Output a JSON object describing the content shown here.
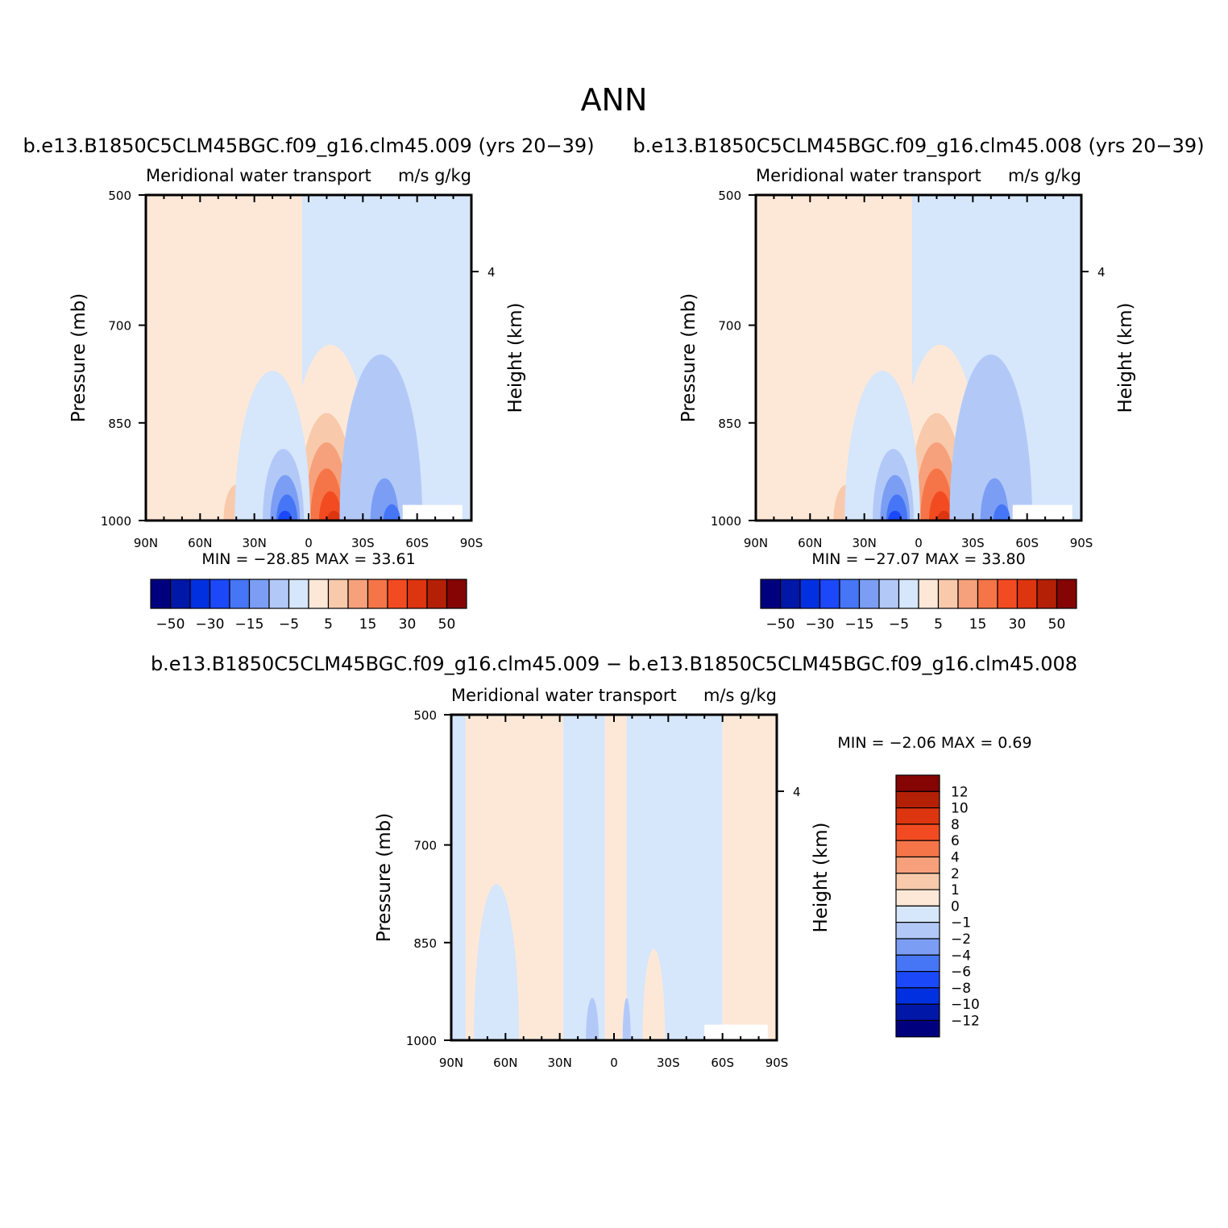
{
  "figure_title": "ANN",
  "colors": {
    "n12": "#00007f",
    "n10": "#0017a8",
    "n8": "#0030df",
    "n6": "#1b48f8",
    "n4": "#4676f6",
    "n2": "#7b9ef4",
    "n1": "#b2c9f8",
    "n0": "#d6e6fb",
    "p0": "#fde8d8",
    "p1": "#f9c9ac",
    "p2": "#f6a17c",
    "p4": "#f57548",
    "p6": "#f34b21",
    "p8": "#dc3510",
    "p10": "#b32006",
    "p12": "#850404"
  },
  "chart_data": [
    {
      "type": "contour",
      "case_title": "b.e13.B1850C5CLM45BGC.f09_g16.clm45.009 (yrs 20−39)",
      "left_title": "Meridional water transport",
      "right_title": "m/s g/kg",
      "ylabel": "Pressure (mb)",
      "ylabel_right": "Height (km)",
      "x_ticks": [
        "90N",
        "60N",
        "30N",
        "0",
        "30S",
        "60S",
        "90S"
      ],
      "x_range": [
        90,
        -90
      ],
      "y_ticks": [
        "500",
        "700",
        "850",
        "1000"
      ],
      "y_range": [
        500,
        1000
      ],
      "right_ticks": [
        "4"
      ],
      "stats": "MIN = −28.85   MAX =  33.61",
      "colorbar_labels": [
        "−50",
        "−30",
        "−15",
        "−5",
        "5",
        "15",
        "30",
        "50"
      ],
      "features": [
        {
          "lat": 38,
          "p_top": 755,
          "level": 1
        },
        {
          "lat": 40,
          "p_top": 945,
          "level": 2
        },
        {
          "lat": -12,
          "p_top": 730,
          "level": 1
        },
        {
          "lat": -10,
          "p_top": 835,
          "level": 2
        },
        {
          "lat": -10,
          "p_top": 880,
          "level": 3
        },
        {
          "lat": -10,
          "p_top": 920,
          "level": 4
        },
        {
          "lat": -12,
          "p_top": 955,
          "level": 5
        },
        {
          "lat": -14,
          "p_top": 985,
          "level": 6
        },
        {
          "lat": 20,
          "p_top": 770,
          "level": -1
        },
        {
          "lat": 14,
          "p_top": 890,
          "level": -2
        },
        {
          "lat": 13,
          "p_top": 930,
          "level": -3
        },
        {
          "lat": 12,
          "p_top": 960,
          "level": -4
        },
        {
          "lat": 13,
          "p_top": 985,
          "level": -5
        },
        {
          "lat": -40,
          "p_top": 745,
          "level": -2
        },
        {
          "lat": -42,
          "p_top": 935,
          "level": -3
        },
        {
          "lat": -46,
          "p_top": 975,
          "level": -4
        }
      ]
    },
    {
      "type": "contour",
      "case_title": "b.e13.B1850C5CLM45BGC.f09_g16.clm45.008 (yrs 20−39)",
      "left_title": "Meridional water transport",
      "right_title": "m/s g/kg",
      "ylabel": "Pressure (mb)",
      "ylabel_right": "Height (km)",
      "x_ticks": [
        "90N",
        "60N",
        "30N",
        "0",
        "30S",
        "60S",
        "90S"
      ],
      "x_range": [
        90,
        -90
      ],
      "y_ticks": [
        "500",
        "700",
        "850",
        "1000"
      ],
      "y_range": [
        500,
        1000
      ],
      "right_ticks": [
        "4"
      ],
      "stats": "MIN = −27.07   MAX =  33.80",
      "colorbar_labels": [
        "−50",
        "−30",
        "−15",
        "−5",
        "5",
        "15",
        "30",
        "50"
      ],
      "features": [
        {
          "lat": 38,
          "p_top": 755,
          "level": 1
        },
        {
          "lat": 40,
          "p_top": 945,
          "level": 2
        },
        {
          "lat": -12,
          "p_top": 730,
          "level": 1
        },
        {
          "lat": -10,
          "p_top": 835,
          "level": 2
        },
        {
          "lat": -10,
          "p_top": 880,
          "level": 3
        },
        {
          "lat": -10,
          "p_top": 920,
          "level": 4
        },
        {
          "lat": -12,
          "p_top": 955,
          "level": 5
        },
        {
          "lat": -14,
          "p_top": 985,
          "level": 6
        },
        {
          "lat": 20,
          "p_top": 770,
          "level": -1
        },
        {
          "lat": 14,
          "p_top": 890,
          "level": -2
        },
        {
          "lat": 13,
          "p_top": 930,
          "level": -3
        },
        {
          "lat": 12,
          "p_top": 960,
          "level": -4
        },
        {
          "lat": 13,
          "p_top": 985,
          "level": -5
        },
        {
          "lat": -40,
          "p_top": 745,
          "level": -2
        },
        {
          "lat": -42,
          "p_top": 935,
          "level": -3
        },
        {
          "lat": -46,
          "p_top": 975,
          "level": -4
        }
      ]
    },
    {
      "type": "contour",
      "case_title": "b.e13.B1850C5CLM45BGC.f09_g16.clm45.009 − b.e13.B1850C5CLM45BGC.f09_g16.clm45.008",
      "left_title": "Meridional water transport",
      "right_title": "m/s g/kg",
      "ylabel": "Pressure (mb)",
      "ylabel_right": "Height (km)",
      "x_ticks": [
        "90N",
        "60N",
        "30N",
        "0",
        "30S",
        "60S",
        "90S"
      ],
      "x_range": [
        90,
        -90
      ],
      "y_ticks": [
        "500",
        "700",
        "850",
        "1000"
      ],
      "y_range": [
        500,
        1000
      ],
      "right_ticks": [
        "4"
      ],
      "stats": "MIN =   −2.06   MAX =    0.69",
      "colorbar_labels": [
        "12",
        "10",
        "8",
        "6",
        "4",
        "2",
        "1",
        "0",
        "−1",
        "−2",
        "−4",
        "−6",
        "−8",
        "−10",
        "−12"
      ],
      "features": []
    }
  ]
}
